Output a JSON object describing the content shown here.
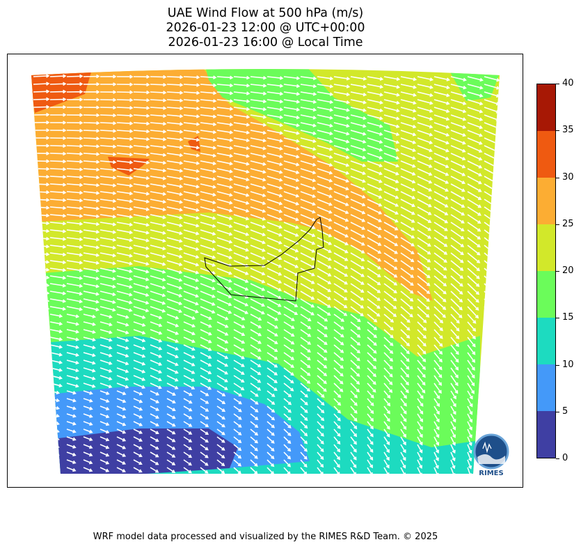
{
  "title": {
    "line1": "UAE Wind Flow at 500 hPa (m/s)",
    "line2": "2026-01-23 12:00 @ UTC+00:00",
    "line3": "2026-01-23 16:00 @ Local Time"
  },
  "colorbar": {
    "ticks": [
      "0",
      "5",
      "10",
      "15",
      "20",
      "25",
      "30",
      "35",
      "40"
    ],
    "colors": [
      "#3f3fa3",
      "#4499f9",
      "#1ddbc0",
      "#6bfc5a",
      "#d2e82a",
      "#fcad33",
      "#ef5a11",
      "#a71805"
    ]
  },
  "map": {
    "arrow_color": "#ffffff",
    "border_color": "#000000"
  },
  "logo": {
    "text": "RIMES"
  },
  "footer": "WRF model data processed and visualized by the RIMES R&D Team. © 2025"
}
